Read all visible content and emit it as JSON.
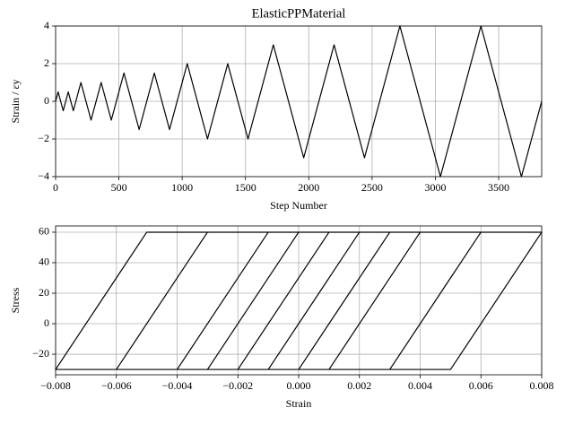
{
  "chart_data": [
    {
      "type": "line",
      "title": "ElasticPPMaterial",
      "xlabel": "Step Number",
      "ylabel": "Strain / εy",
      "color": "#000000",
      "grid": true,
      "x": [
        0,
        20,
        60,
        100,
        140,
        200,
        280,
        360,
        440,
        540,
        660,
        780,
        900,
        1040,
        1200,
        1360,
        1520,
        1720,
        1960,
        2200,
        2440,
        2720,
        3040,
        3360,
        3680,
        3840
      ],
      "values": [
        0,
        0.5,
        -0.5,
        0.5,
        -0.5,
        1,
        -1,
        1,
        -1,
        1.5,
        -1.5,
        1.5,
        -1.5,
        2,
        -2,
        2,
        -2,
        3,
        -3,
        3,
        -3,
        4,
        -4,
        4,
        -4,
        0
      ],
      "xlim": [
        0,
        3840
      ],
      "ylim": [
        -4,
        4
      ],
      "xticks": [
        0,
        500,
        1000,
        1500,
        2000,
        2500,
        3000,
        3500
      ],
      "yticks": [
        {
          "value": -4,
          "label": "−4"
        },
        {
          "value": -2,
          "label": "−2"
        },
        0,
        2,
        4
      ]
    },
    {
      "type": "line",
      "xlabel": "Strain",
      "ylabel": "Stress",
      "color": "#000000",
      "grid": true,
      "x": [
        0,
        0.001,
        -0.001,
        0.001,
        -0.001,
        0.002,
        -0.001,
        -0.002,
        0.001,
        0.002,
        -0.001,
        -0.002,
        0.001,
        0.003,
        0,
        -0.003,
        0,
        0.003,
        0,
        -0.003,
        0,
        0.004,
        0.001,
        -0.004,
        -0.001,
        0.004,
        0.001,
        -0.004,
        -0.001,
        0.006,
        0.003,
        -0.006,
        -0.003,
        0.006,
        0.003,
        -0.006,
        -0.003,
        0.008,
        0.005,
        -0.008,
        -0.005,
        0.008,
        0.005,
        -0.008,
        -0.005,
        0
      ],
      "values": [
        0,
        30,
        -30,
        30,
        -30,
        60,
        -30,
        -30,
        60,
        60,
        -30,
        -30,
        60,
        60,
        -30,
        -30,
        60,
        60,
        -30,
        -30,
        60,
        60,
        -30,
        -30,
        60,
        60,
        -30,
        -30,
        60,
        60,
        -30,
        -30,
        60,
        60,
        -30,
        -30,
        60,
        60,
        -30,
        -30,
        60,
        60,
        -30,
        -30,
        60,
        60
      ],
      "xlim": [
        -0.008,
        0.008
      ],
      "ylim": [
        -33.5,
        64.1
      ],
      "xticks": [
        {
          "value": -0.008,
          "label": "−0.008"
        },
        {
          "value": -0.006,
          "label": "−0.006"
        },
        {
          "value": -0.004,
          "label": "−0.004"
        },
        {
          "value": -0.002,
          "label": "−0.002"
        },
        {
          "value": 0,
          "label": "0.000"
        },
        0.002,
        0.004,
        0.006,
        0.008
      ],
      "yticks": [
        {
          "value": -20,
          "label": "−20"
        },
        0,
        20,
        40,
        60
      ]
    }
  ]
}
